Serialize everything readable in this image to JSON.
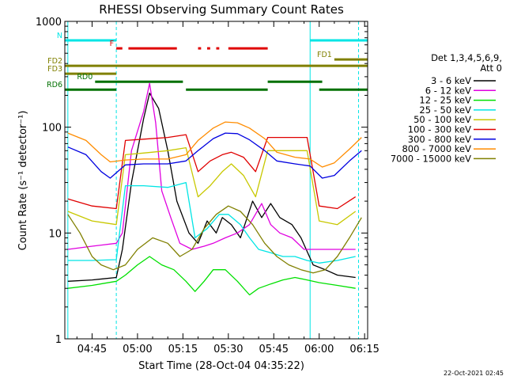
{
  "colors": {
    "background": "#ffffff",
    "axis": "#000000",
    "night_marker": "#00e5e5",
    "flare_flag": "#e00000",
    "decimation_flag": "#808000",
    "saa_flag": "#007000"
  },
  "chart_data": {
    "type": "line",
    "title": "RHESSI Observing Summary Count Rates",
    "xlabel": "Start Time (28-Oct-04 04:35:22)",
    "ylabel": "Count Rate (s⁻¹ detector⁻¹)",
    "y_scale": "log",
    "ylim": [
      1,
      1000
    ],
    "xlim": [
      "04:36",
      "06:16"
    ],
    "grid": false,
    "legend_position": "right",
    "x_ticks": [
      {
        "label": "04:45",
        "t": "04:45"
      },
      {
        "label": "05:00",
        "t": "05:00"
      },
      {
        "label": "05:15",
        "t": "05:15"
      },
      {
        "label": "05:30",
        "t": "05:30"
      },
      {
        "label": "05:45",
        "t": "05:45"
      },
      {
        "label": "06:00",
        "t": "06:00"
      },
      {
        "label": "06:15",
        "t": "06:15"
      }
    ],
    "y_ticks": [
      {
        "label": "1",
        "value": 1
      },
      {
        "label": "10",
        "value": 10
      },
      {
        "label": "100",
        "value": 100
      },
      {
        "label": "1000",
        "value": 1000
      }
    ],
    "legend_header": [
      "Det 1,3,4,5,6,9,",
      "Att 0"
    ],
    "timestamp": "22-Oct-2021 02:45",
    "series": [
      {
        "name": "3 - 6 keV",
        "color": "#000000",
        "points": [
          [
            "04:37",
            3.5
          ],
          [
            "04:45",
            3.6
          ],
          [
            "04:53",
            3.8
          ],
          [
            "04:55",
            7
          ],
          [
            "04:58",
            30
          ],
          [
            "05:02",
            120
          ],
          [
            "05:04",
            210
          ],
          [
            "05:07",
            150
          ],
          [
            "05:10",
            60
          ],
          [
            "05:13",
            20
          ],
          [
            "05:17",
            10
          ],
          [
            "05:20",
            8
          ],
          [
            "05:23",
            13
          ],
          [
            "05:26",
            10
          ],
          [
            "05:28",
            14
          ],
          [
            "05:31",
            12
          ],
          [
            "05:34",
            9
          ],
          [
            "05:38",
            20
          ],
          [
            "05:41",
            14
          ],
          [
            "05:44",
            19
          ],
          [
            "05:47",
            14
          ],
          [
            "05:51",
            12
          ],
          [
            "05:54",
            9
          ],
          [
            "05:58",
            5
          ],
          [
            "06:02",
            4.5
          ],
          [
            "06:06",
            4.0
          ],
          [
            "06:12",
            3.8
          ]
        ]
      },
      {
        "name": "6 - 12 keV",
        "color": "#e000e0",
        "points": [
          [
            "04:37",
            7
          ],
          [
            "04:45",
            7.5
          ],
          [
            "04:53",
            8
          ],
          [
            "04:55",
            10
          ],
          [
            "04:58",
            60
          ],
          [
            "05:02",
            140
          ],
          [
            "05:04",
            260
          ],
          [
            "05:06",
            110
          ],
          [
            "05:08",
            25
          ],
          [
            "05:11",
            14
          ],
          [
            "05:14",
            8
          ],
          [
            "05:18",
            7
          ],
          [
            "05:22",
            7.5
          ],
          [
            "05:25",
            8
          ],
          [
            "05:29",
            9
          ],
          [
            "05:33",
            10
          ],
          [
            "05:37",
            12
          ],
          [
            "05:41",
            19
          ],
          [
            "05:44",
            12
          ],
          [
            "05:47",
            10
          ],
          [
            "05:51",
            9
          ],
          [
            "05:55",
            7
          ],
          [
            "06:00",
            7
          ],
          [
            "06:05",
            7
          ],
          [
            "06:12",
            7
          ]
        ]
      },
      {
        "name": "12 - 25 keV",
        "color": "#00e000",
        "points": [
          [
            "04:37",
            3.0
          ],
          [
            "04:45",
            3.2
          ],
          [
            "04:53",
            3.5
          ],
          [
            "04:56",
            4.0
          ],
          [
            "05:00",
            5
          ],
          [
            "05:04",
            6
          ],
          [
            "05:08",
            5
          ],
          [
            "05:12",
            4.5
          ],
          [
            "05:16",
            3.5
          ],
          [
            "05:19",
            2.8
          ],
          [
            "05:22",
            3.5
          ],
          [
            "05:25",
            4.5
          ],
          [
            "05:29",
            4.5
          ],
          [
            "05:33",
            3.5
          ],
          [
            "05:37",
            2.6
          ],
          [
            "05:40",
            3.0
          ],
          [
            "05:44",
            3.3
          ],
          [
            "05:48",
            3.6
          ],
          [
            "05:52",
            3.8
          ],
          [
            "05:56",
            3.6
          ],
          [
            "06:00",
            3.4
          ],
          [
            "06:06",
            3.2
          ],
          [
            "06:12",
            3.0
          ]
        ]
      },
      {
        "name": "25 - 50 keV",
        "color": "#00e5e5",
        "points": [
          [
            "04:37",
            5.5
          ],
          [
            "04:45",
            5.5
          ],
          [
            "04:53",
            5.6
          ],
          [
            "04:56",
            28
          ],
          [
            "05:02",
            28
          ],
          [
            "05:10",
            27
          ],
          [
            "05:16",
            30
          ],
          [
            "05:19",
            9
          ],
          [
            "05:23",
            11
          ],
          [
            "05:27",
            15
          ],
          [
            "05:30",
            15
          ],
          [
            "05:34",
            12
          ],
          [
            "05:37",
            9
          ],
          [
            "05:40",
            7
          ],
          [
            "05:44",
            6.5
          ],
          [
            "05:48",
            6
          ],
          [
            "05:52",
            6
          ],
          [
            "05:56",
            5.5
          ],
          [
            "06:00",
            5.2
          ],
          [
            "06:06",
            5.5
          ],
          [
            "06:12",
            6
          ]
        ]
      },
      {
        "name": "50 - 100 keV",
        "color": "#c8c800",
        "points": [
          [
            "04:37",
            16
          ],
          [
            "04:45",
            13
          ],
          [
            "04:53",
            12
          ],
          [
            "04:56",
            55
          ],
          [
            "05:02",
            57
          ],
          [
            "05:10",
            60
          ],
          [
            "05:16",
            64
          ],
          [
            "05:20",
            22
          ],
          [
            "05:24",
            28
          ],
          [
            "05:28",
            38
          ],
          [
            "05:31",
            45
          ],
          [
            "05:35",
            35
          ],
          [
            "05:39",
            22
          ],
          [
            "05:43",
            60
          ],
          [
            "05:50",
            60
          ],
          [
            "05:56",
            60
          ],
          [
            "06:00",
            13
          ],
          [
            "06:06",
            12
          ],
          [
            "06:12",
            16
          ]
        ]
      },
      {
        "name": "100 - 300 keV",
        "color": "#e00000",
        "points": [
          [
            "04:37",
            21
          ],
          [
            "04:45",
            18
          ],
          [
            "04:53",
            17
          ],
          [
            "04:56",
            75
          ],
          [
            "05:02",
            77
          ],
          [
            "05:10",
            80
          ],
          [
            "05:16",
            85
          ],
          [
            "05:20",
            38
          ],
          [
            "05:24",
            48
          ],
          [
            "05:28",
            55
          ],
          [
            "05:31",
            58
          ],
          [
            "05:35",
            52
          ],
          [
            "05:39",
            38
          ],
          [
            "05:43",
            80
          ],
          [
            "05:50",
            80
          ],
          [
            "05:56",
            80
          ],
          [
            "06:00",
            18
          ],
          [
            "06:06",
            17
          ],
          [
            "06:12",
            22
          ]
        ]
      },
      {
        "name": "300 - 800 keV",
        "color": "#0000e0",
        "points": [
          [
            "04:37",
            65
          ],
          [
            "04:43",
            55
          ],
          [
            "04:48",
            38
          ],
          [
            "04:51",
            33
          ],
          [
            "04:56",
            44
          ],
          [
            "05:02",
            45
          ],
          [
            "05:10",
            45
          ],
          [
            "05:16",
            48
          ],
          [
            "05:20",
            60
          ],
          [
            "05:25",
            78
          ],
          [
            "05:29",
            88
          ],
          [
            "05:33",
            87
          ],
          [
            "05:37",
            76
          ],
          [
            "05:42",
            60
          ],
          [
            "05:46",
            48
          ],
          [
            "05:52",
            45
          ],
          [
            "05:57",
            43
          ],
          [
            "06:01",
            33
          ],
          [
            "06:05",
            35
          ],
          [
            "06:10",
            48
          ],
          [
            "06:14",
            60
          ]
        ]
      },
      {
        "name": "800 - 7000 keV",
        "color": "#ff8c00",
        "points": [
          [
            "04:37",
            88
          ],
          [
            "04:43",
            75
          ],
          [
            "04:48",
            55
          ],
          [
            "04:51",
            47
          ],
          [
            "04:56",
            49
          ],
          [
            "05:02",
            50
          ],
          [
            "05:10",
            50
          ],
          [
            "05:16",
            55
          ],
          [
            "05:20",
            75
          ],
          [
            "05:25",
            98
          ],
          [
            "05:29",
            112
          ],
          [
            "05:33",
            110
          ],
          [
            "05:37",
            98
          ],
          [
            "05:42",
            78
          ],
          [
            "05:46",
            58
          ],
          [
            "05:52",
            52
          ],
          [
            "05:57",
            50
          ],
          [
            "06:01",
            42
          ],
          [
            "06:05",
            46
          ],
          [
            "06:10",
            62
          ],
          [
            "06:14",
            80
          ]
        ]
      },
      {
        "name": "7000 - 15000 keV",
        "color": "#808000",
        "points": [
          [
            "04:37",
            15
          ],
          [
            "04:41",
            10
          ],
          [
            "04:45",
            6
          ],
          [
            "04:48",
            5
          ],
          [
            "04:52",
            4.5
          ],
          [
            "04:56",
            5
          ],
          [
            "05:00",
            7
          ],
          [
            "05:05",
            9
          ],
          [
            "05:10",
            8
          ],
          [
            "05:14",
            6
          ],
          [
            "05:18",
            7
          ],
          [
            "05:22",
            11
          ],
          [
            "05:26",
            15
          ],
          [
            "05:30",
            18
          ],
          [
            "05:34",
            16
          ],
          [
            "05:38",
            12
          ],
          [
            "05:42",
            8
          ],
          [
            "05:46",
            6
          ],
          [
            "05:50",
            5
          ],
          [
            "05:54",
            4.5
          ],
          [
            "05:58",
            4.2
          ],
          [
            "06:02",
            4.5
          ],
          [
            "06:06",
            6
          ],
          [
            "06:10",
            9
          ],
          [
            "06:14",
            14
          ]
        ]
      }
    ],
    "flags": [
      {
        "label": "N",
        "color": "#00e5e5",
        "y_fraction": 0.06,
        "segments": [
          [
            "04:36",
            "04:53"
          ],
          [
            "05:57",
            "06:16"
          ]
        ]
      },
      {
        "label": "F",
        "color": "#e00000",
        "y_fraction": 0.085,
        "segments": [
          [
            "04:53",
            "04:55"
          ],
          [
            "04:57",
            "05:13"
          ],
          [
            "05:20",
            "05:21"
          ],
          [
            "05:23",
            "05:24"
          ],
          [
            "05:26",
            "05:27"
          ],
          [
            "05:30",
            "05:43"
          ]
        ]
      },
      {
        "label": "FD1",
        "color": "#808000",
        "y_fraction": 0.12,
        "segments": [
          [
            "06:05",
            "06:16"
          ]
        ]
      },
      {
        "label": "FD2",
        "color": "#808000",
        "y_fraction": 0.14,
        "segments": [
          [
            "04:36",
            "06:16"
          ]
        ]
      },
      {
        "label": "FD3",
        "color": "#808000",
        "y_fraction": 0.165,
        "segments": [
          [
            "04:36",
            "04:53"
          ]
        ]
      },
      {
        "label": "RD0",
        "color": "#007000",
        "y_fraction": 0.19,
        "segments": [
          [
            "04:46",
            "05:15"
          ],
          [
            "05:43",
            "06:01"
          ]
        ]
      },
      {
        "label": "RD6",
        "color": "#007000",
        "y_fraction": 0.215,
        "segments": [
          [
            "04:36",
            "04:53"
          ],
          [
            "05:16",
            "05:43"
          ],
          [
            "06:00",
            "06:16"
          ]
        ]
      }
    ],
    "night_markers": [
      {
        "t": "04:37",
        "style": "solid"
      },
      {
        "t": "04:53",
        "style": "dashed"
      },
      {
        "t": "05:57",
        "style": "solid"
      },
      {
        "t": "06:13",
        "style": "dashed"
      }
    ]
  }
}
